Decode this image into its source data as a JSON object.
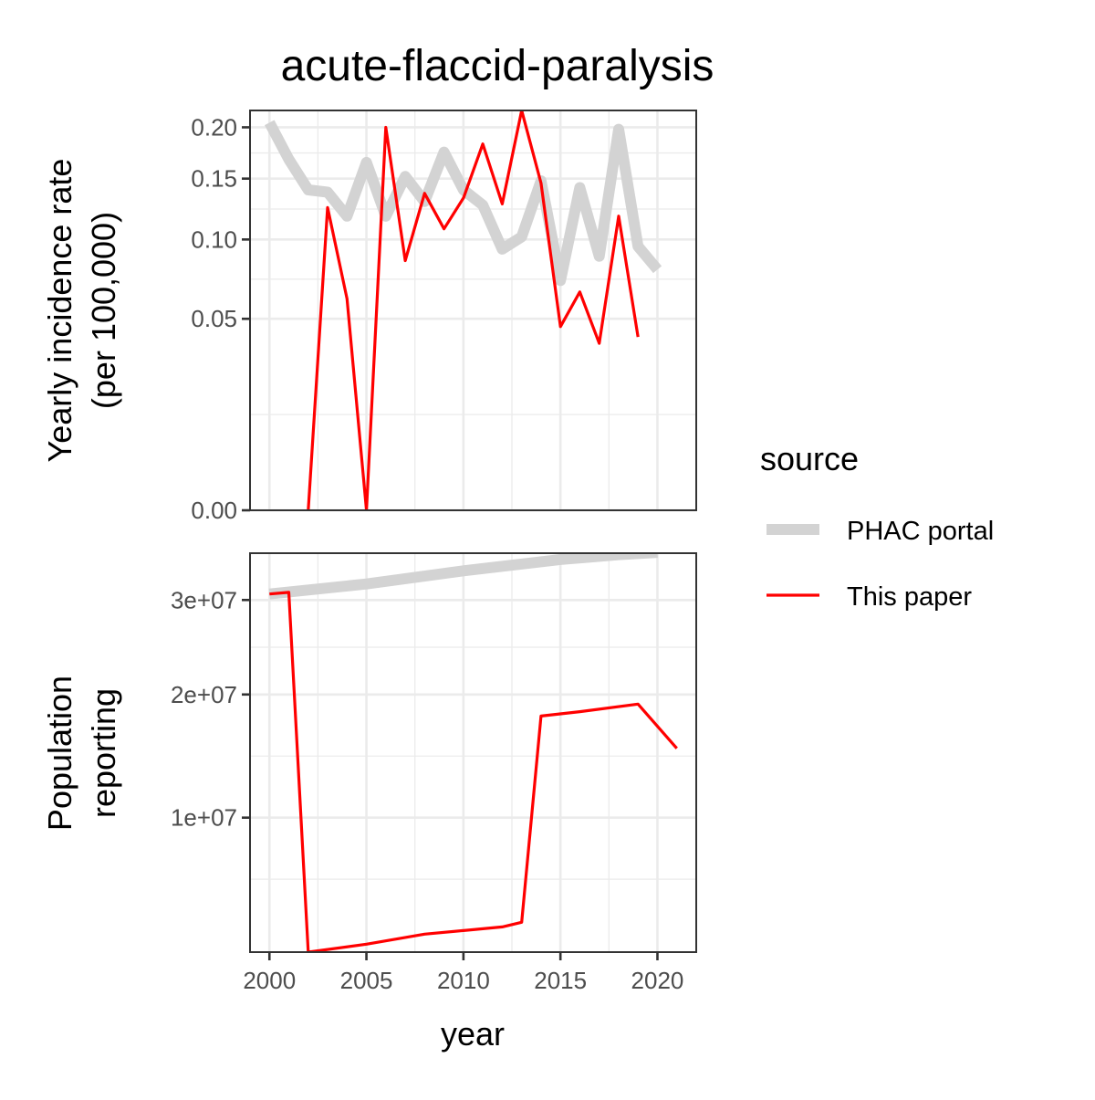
{
  "chart_data": {
    "type": "line",
    "title": "acute-flaccid-paralysis",
    "xlabel": "year",
    "xticks": [
      "2000",
      "2005",
      "2010",
      "2015",
      "2020"
    ],
    "legend": {
      "title": "source",
      "position": "right",
      "entries": [
        {
          "label": "PHAC portal",
          "color": "#d3d3d3"
        },
        {
          "label": "This paper",
          "color": "#ff0000"
        }
      ]
    },
    "panels": [
      {
        "ylabel_lines": [
          "Yearly incidence rate",
          "(per 100,000)"
        ],
        "yscale": "sqrt",
        "yticks": [
          "0.00",
          "0.05",
          "0.10",
          "0.15",
          "0.20"
        ],
        "ylim": [
          0,
          0.218
        ],
        "series": [
          {
            "name": "PHAC portal",
            "x": [
              2000,
              2001,
              2002,
              2003,
              2004,
              2005,
              2006,
              2007,
              2008,
              2009,
              2010,
              2011,
              2012,
              2013,
              2014,
              2015,
              2016,
              2017,
              2018,
              2019,
              2020
            ],
            "values": [
              0.205,
              0.168,
              0.14,
              0.138,
              0.118,
              0.165,
              0.118,
              0.152,
              0.13,
              0.175,
              0.14,
              0.127,
              0.093,
              0.102,
              0.148,
              0.072,
              0.142,
              0.088,
              0.198,
              0.095,
              0.079
            ]
          },
          {
            "name": "This paper",
            "x": [
              2002,
              2003,
              2004,
              2005,
              2006,
              2007,
              2008,
              2009,
              2010,
              2011,
              2012,
              2013,
              2014,
              2015,
              2016,
              2017,
              2018,
              2019
            ],
            "values": [
              0,
              0.125,
              0.061,
              0,
              0.2,
              0.085,
              0.137,
              0.108,
              0.133,
              0.183,
              0.128,
              0.218,
              0.146,
              0.046,
              0.065,
              0.038,
              0.118,
              0.041
            ]
          }
        ]
      },
      {
        "ylabel_lines": [
          "Population",
          "reporting"
        ],
        "yscale": "sqrt",
        "yticks": [
          "1e+07",
          "2e+07",
          "3e+07"
        ],
        "ylim": [
          3000000,
          35700000
        ],
        "series": [
          {
            "name": "PHAC portal",
            "x": [
              2000,
              2005,
              2010,
              2015,
              2018,
              2020
            ],
            "values": [
              30700000,
              31900000,
              33500000,
              34900000,
              35500000,
              35800000
            ]
          },
          {
            "name": "This paper",
            "x": [
              2000,
              2001,
              2002,
              2005,
              2008,
              2012,
              2013,
              2014,
              2016,
              2019,
              2021
            ],
            "values": [
              30700000,
              30900000,
              3000000,
              3300000,
              3700000,
              4000000,
              4200000,
              18000000,
              18400000,
              19100000,
              15200000
            ]
          }
        ]
      }
    ]
  }
}
